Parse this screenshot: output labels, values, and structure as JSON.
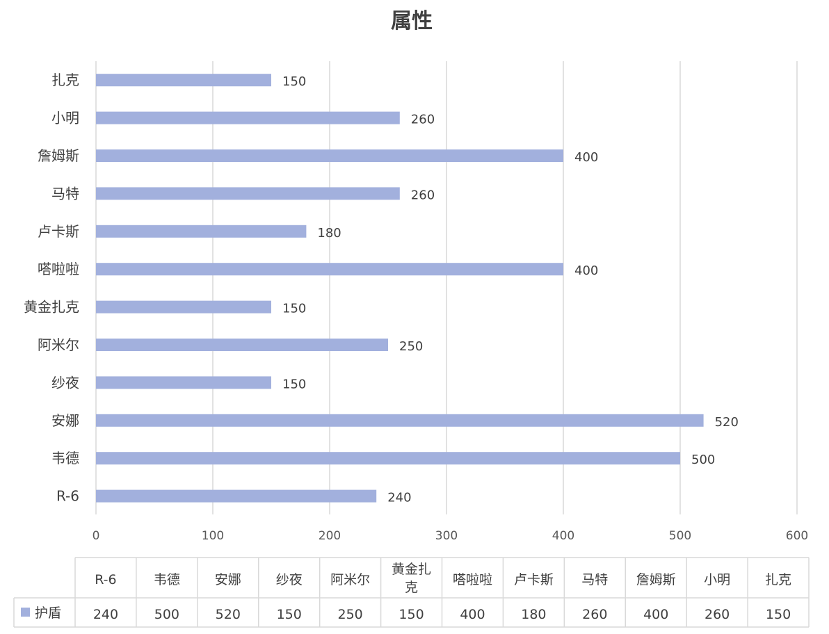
{
  "chart_data": {
    "type": "bar",
    "orientation": "horizontal",
    "title": "属性",
    "categories": [
      "R-6",
      "韦德",
      "安娜",
      "纱夜",
      "阿米尔",
      "黄金扎克",
      "嗒啦啦",
      "卢卡斯",
      "马特",
      "詹姆斯",
      "小明",
      "扎克"
    ],
    "series": [
      {
        "name": "护盾",
        "values": [
          240,
          500,
          520,
          150,
          250,
          150,
          400,
          180,
          260,
          400,
          260,
          150
        ],
        "color": "#a2b0dd"
      }
    ],
    "xlim": [
      0,
      600
    ],
    "xticks": [
      0,
      100,
      200,
      300,
      400,
      500,
      600
    ],
    "grid": true,
    "data_labels": true,
    "data_table": true,
    "table_headers": [
      "R-6",
      "韦德",
      "安娜",
      "纱夜",
      "阿米尔",
      "黄金扎\n克",
      "嗒啦啦",
      "卢卡斯",
      "马特",
      "詹姆斯",
      "小明",
      "扎克"
    ]
  }
}
